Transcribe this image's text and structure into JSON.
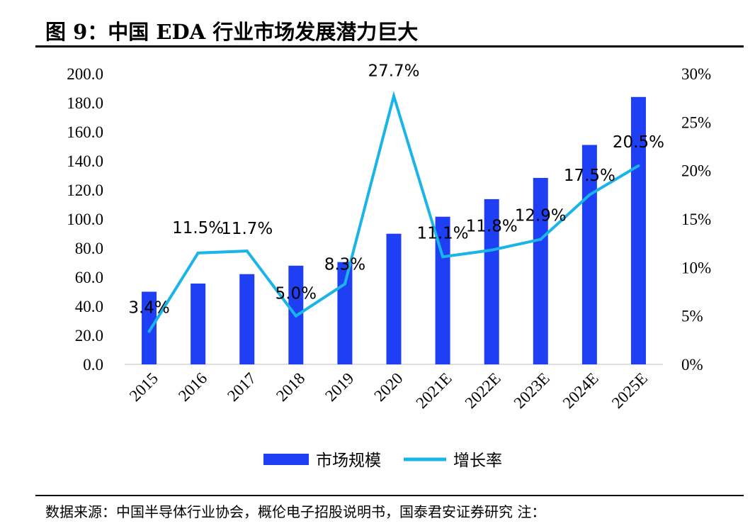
{
  "title": "图 9：中国 EDA 行业市场发展潜力巨大",
  "source_note": "数据来源：中国半导体行业协会，概伦电子招股说明书，国泰君安证券研究 注：",
  "chart_data": {
    "type": "bar+line",
    "categories": [
      "2015",
      "2016",
      "2017",
      "2018",
      "2019",
      "2020",
      "2021E",
      "2022E",
      "2023E",
      "2024E",
      "2025E"
    ],
    "series": [
      {
        "name": "市场规模",
        "type": "bar",
        "axis": "left",
        "color": "#1f3ff5",
        "values": [
          50.0,
          55.6,
          62.1,
          67.9,
          70.4,
          89.9,
          101.6,
          113.7,
          128.3,
          151.0,
          184.0
        ]
      },
      {
        "name": "增长率",
        "type": "line",
        "axis": "right",
        "color": "#1ab4e8",
        "values": [
          3.4,
          11.5,
          11.7,
          5.0,
          8.3,
          27.7,
          11.1,
          11.8,
          12.9,
          17.5,
          20.5
        ],
        "labels": [
          "3.4%",
          "11.5%",
          "11.7%",
          "5.0%",
          "8.3%",
          "27.7%",
          "11.1%",
          "11.8%",
          "12.9%",
          "17.5%",
          "20.5%"
        ]
      }
    ],
    "left_axis": {
      "ylim": [
        0,
        200
      ],
      "ticks": [
        0,
        20,
        40,
        60,
        80,
        100,
        120,
        140,
        160,
        180,
        200
      ],
      "tick_labels": [
        "0.0",
        "20.0",
        "40.0",
        "60.0",
        "80.0",
        "100.0",
        "120.0",
        "140.0",
        "160.0",
        "180.0",
        "200.0"
      ]
    },
    "right_axis": {
      "ylim": [
        0,
        30
      ],
      "ticks": [
        0,
        5,
        10,
        15,
        20,
        25,
        30
      ],
      "tick_labels": [
        "0%",
        "5%",
        "10%",
        "15%",
        "20%",
        "25%",
        "30%"
      ]
    },
    "legend": {
      "position": "bottom",
      "items": [
        "市场规模",
        "增长率"
      ]
    },
    "grid": false
  }
}
